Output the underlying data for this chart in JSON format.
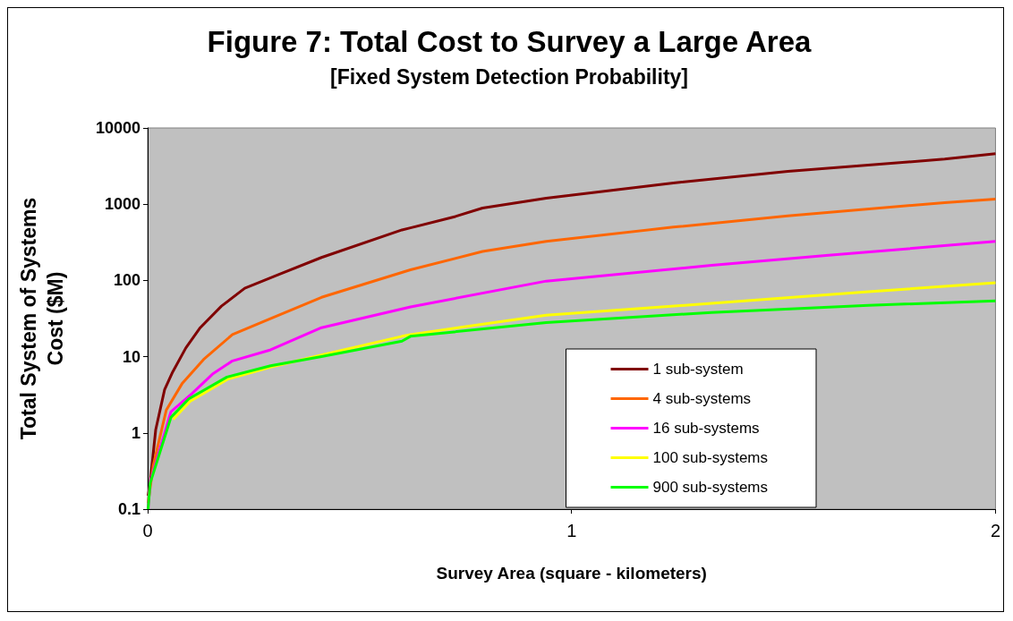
{
  "chart_data": {
    "type": "line",
    "title": "Figure 7: Total Cost to Survey a Large Area",
    "subtitle": "[Fixed System Detection Probability]",
    "xlabel": "Survey Area (square - kilometers)",
    "ylabel": "Total System of Systems\nCost ($M)",
    "xlim": [
      0,
      2
    ],
    "xticks": [
      0,
      1,
      2
    ],
    "ylim": [
      0.1,
      10000
    ],
    "yticks": [
      0.1,
      1,
      10,
      100,
      1000,
      10000
    ],
    "log": "y",
    "grid": false,
    "legend": "bottom right",
    "marker": "none",
    "line_style": "solid",
    "series": [
      {
        "name": "1 sub-system",
        "color": "#800000",
        "x": [
          0.001,
          0.005,
          0.019,
          0.04,
          0.059,
          0.09,
          0.124,
          0.174,
          0.229,
          0.31,
          0.41,
          0.6,
          0.62,
          0.726,
          0.79,
          0.94,
          1.24,
          1.51,
          1.88,
          2
        ],
        "values": [
          0.15,
          0.2,
          1.1,
          3.7,
          6.3,
          13,
          24,
          46,
          79,
          120,
          200,
          460,
          490,
          690,
          890,
          1200,
          1900,
          2700,
          3900,
          4600
        ]
      },
      {
        "name": "4 sub-systems",
        "color": "#ff6600",
        "x": [
          0.001,
          0.013,
          0.044,
          0.082,
          0.132,
          0.2,
          0.292,
          0.41,
          0.62,
          0.79,
          0.94,
          1.24,
          1.51,
          1.88,
          2
        ],
        "values": [
          0.12,
          0.37,
          2.0,
          4.5,
          9.2,
          19.5,
          32,
          60,
          138,
          240,
          325,
          500,
          705,
          1050,
          1170
        ]
      },
      {
        "name": "16 sub-systems",
        "color": "#ff00ff",
        "x": [
          0.001,
          0.006,
          0.055,
          0.105,
          0.153,
          0.2,
          0.29,
          0.41,
          0.62,
          0.94,
          1.33,
          1.6,
          2
        ],
        "values": [
          0.1,
          0.23,
          1.9,
          3.3,
          5.9,
          8.8,
          12.3,
          24,
          45,
          98,
          158,
          212,
          325
        ]
      },
      {
        "name": "100 sub-systems",
        "color": "#ffff00",
        "x": [
          0.06,
          0.1,
          0.19,
          0.29,
          0.41,
          0.6,
          0.62,
          0.94,
          1.33,
          1.7,
          2
        ],
        "values": [
          1.5,
          2.6,
          5.1,
          7.3,
          10.5,
          18.5,
          19.5,
          35,
          50,
          71,
          93
        ]
      },
      {
        "name": "900 sub-systems",
        "color": "#00ff00",
        "x": [
          0.001,
          0.006,
          0.055,
          0.097,
          0.187,
          0.29,
          0.41,
          0.6,
          0.62,
          0.94,
          1.33,
          1.7,
          2
        ],
        "values": [
          0.1,
          0.22,
          1.6,
          2.8,
          5.4,
          7.6,
          10,
          16,
          18.5,
          28,
          38,
          47,
          54
        ]
      }
    ]
  }
}
